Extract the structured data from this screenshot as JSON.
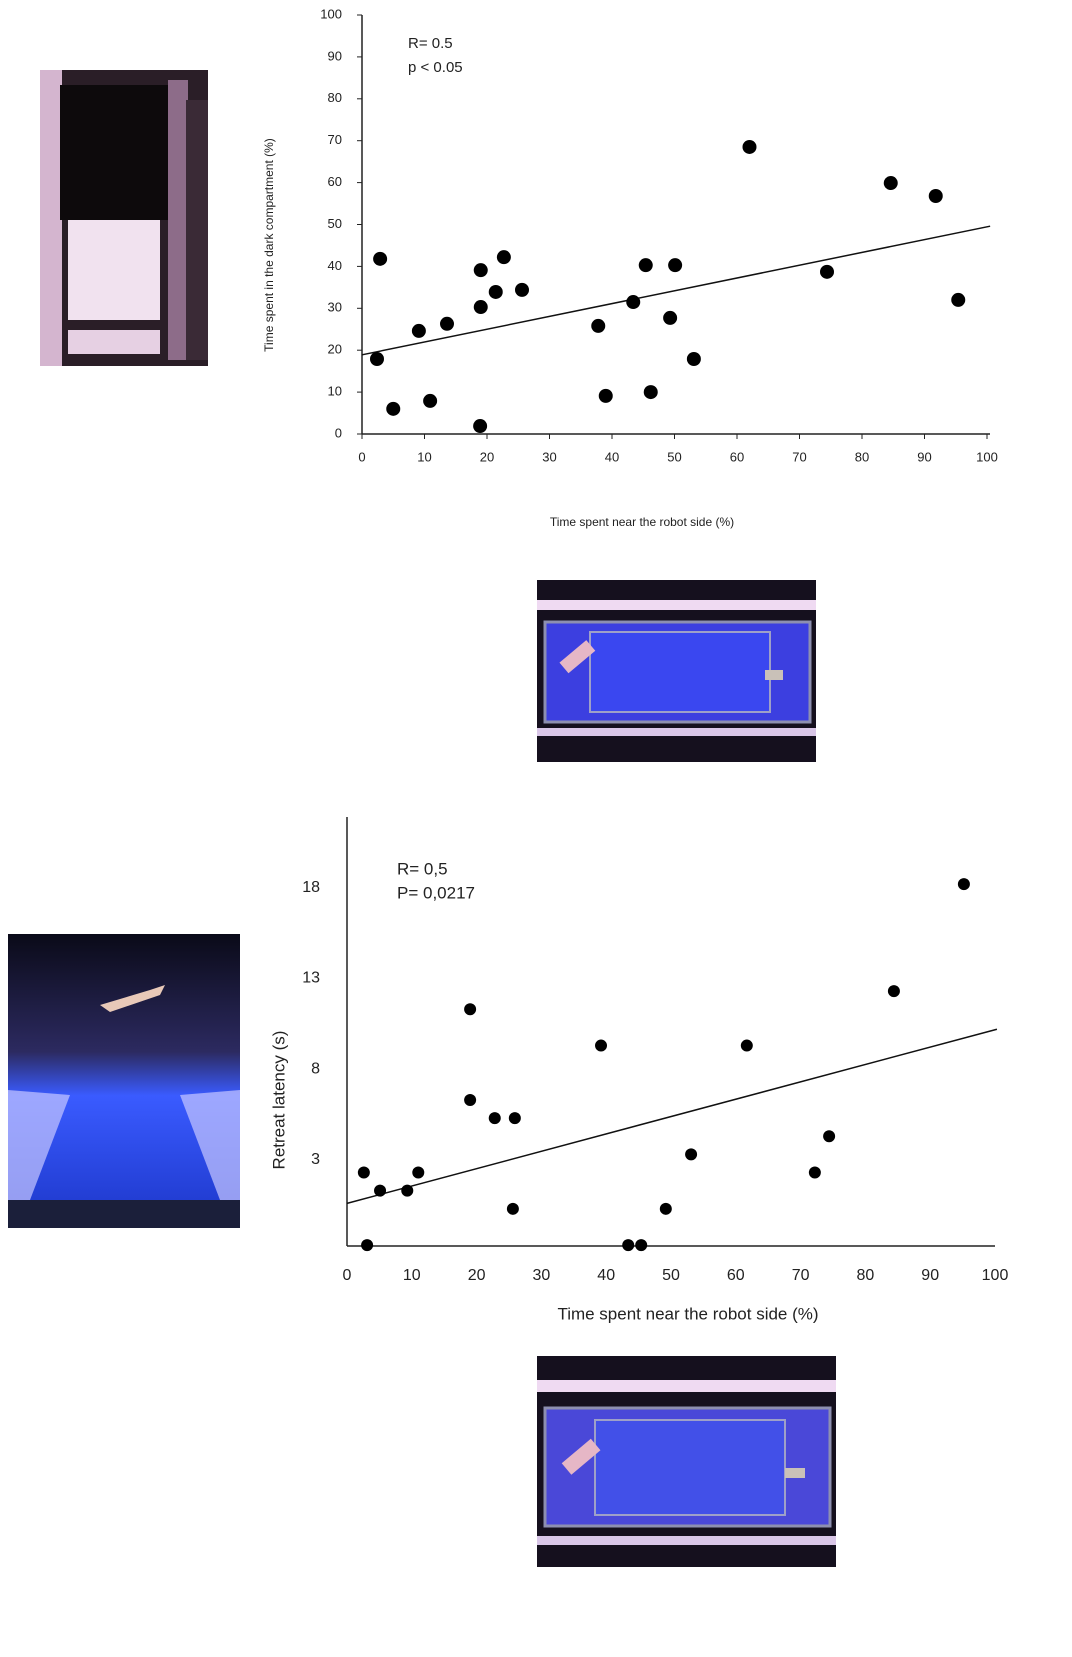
{
  "chart_data": [
    {
      "type": "scatter",
      "x_label": "Time spent near the robot side (%)",
      "y_label": "Time spent in the dark compartment (%)",
      "annotations": [
        "R= 0.5",
        "p < 0.05"
      ],
      "color": "#000000",
      "x": [
        2.4,
        2.9,
        5,
        9.1,
        10.9,
        13.6,
        18.9,
        19,
        19,
        21.4,
        22.7,
        25.6,
        37.8,
        39,
        43.4,
        45.4,
        46.2,
        49.3,
        50.1,
        53.1,
        62,
        74.4,
        84.6,
        91.8,
        95.4
      ],
      "y": [
        17.9,
        41.8,
        6,
        24.6,
        7.9,
        26.3,
        1.9,
        30.3,
        39.1,
        33.9,
        42.2,
        34.4,
        25.8,
        9.1,
        31.5,
        40.3,
        10,
        27.7,
        40.3,
        17.9,
        68.5,
        38.7,
        59.9,
        56.8,
        32
      ],
      "trendline": {
        "x": [
          0,
          100.5
        ],
        "y": [
          18.9,
          49.6
        ]
      },
      "xlim": [
        0,
        100
      ],
      "ylim": [
        0,
        100
      ],
      "xticks": [
        0,
        10,
        20,
        30,
        40,
        50,
        60,
        70,
        80,
        90,
        100
      ],
      "yticks": [
        0,
        10,
        20,
        30,
        40,
        50,
        60,
        70,
        80,
        90,
        100
      ],
      "grid": false
    },
    {
      "type": "scatter",
      "x_label": "Time spent near the robot side (%)",
      "y_label": "Retreat latency (s)",
      "annotations": [
        "R= 0,5",
        "P= 0,0217"
      ],
      "color": "#000000",
      "x": [
        2.6,
        3.1,
        5.1,
        9.3,
        11,
        19,
        19,
        22.8,
        25.9,
        25.6,
        39.2,
        43.4,
        45.4,
        49.2,
        53.1,
        61.7,
        72.2,
        74.4,
        84.4,
        95.2
      ],
      "y": [
        2.3,
        -1.7,
        1.3,
        1.3,
        2.3,
        11.3,
        6.3,
        5.3,
        5.3,
        0.3,
        9.3,
        -1.7,
        -1.7,
        0.3,
        3.3,
        9.3,
        2.3,
        4.3,
        12.3,
        18.2
      ],
      "trendline": {
        "x": [
          0,
          100.3
        ],
        "y": [
          0.6,
          10.2
        ]
      },
      "xlim": [
        0,
        100
      ],
      "ylim": [
        -1.75,
        21.9
      ],
      "xticks": [
        0,
        10,
        20,
        30,
        40,
        50,
        60,
        70,
        80,
        90,
        100
      ],
      "yticks": [
        3,
        8,
        13,
        18
      ],
      "grid": false
    }
  ]
}
